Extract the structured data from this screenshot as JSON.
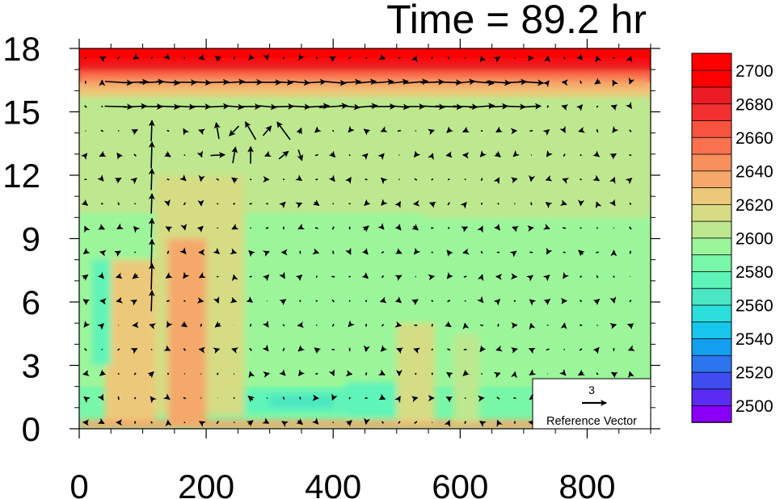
{
  "chart_data": {
    "type": "heatmap",
    "title": "Time = 89.2 hr",
    "xlabel": "",
    "ylabel": "",
    "xlim": [
      0,
      900
    ],
    "ylim": [
      0,
      18
    ],
    "xticks": [
      "0",
      "200",
      "400",
      "600",
      "800"
    ],
    "xtick_values": [
      0,
      200,
      400,
      600,
      800
    ],
    "yticks": [
      "0",
      "3",
      "6",
      "9",
      "12",
      "15",
      "18"
    ],
    "ytick_values": [
      0,
      3,
      6,
      9,
      12,
      15,
      18
    ],
    "colorbar": {
      "min": 2490,
      "max": 2710,
      "step": 10,
      "labels": [
        "2500",
        "2520",
        "2540",
        "2560",
        "2580",
        "2600",
        "2620",
        "2640",
        "2660",
        "2680",
        "2700"
      ],
      "label_values": [
        2500,
        2520,
        2540,
        2560,
        2580,
        2600,
        2620,
        2640,
        2660,
        2680,
        2700
      ],
      "colors": [
        "#8a00f7",
        "#5a2bf2",
        "#3e4cf0",
        "#2c75ee",
        "#129ff0",
        "#16c6ec",
        "#2bdedc",
        "#4be7c3",
        "#5ef4b8",
        "#78f7a8",
        "#9bf69a",
        "#bde88f",
        "#d6dc84",
        "#ecc97a",
        "#f4a96b",
        "#f8905d",
        "#f9724d",
        "#f7533e",
        "#f2302f",
        "#ec1c24",
        "#ff0000",
        "#ff0000"
      ]
    },
    "field_note_bands": [
      {
        "height_range": [
          17.0,
          18.0
        ],
        "value": 2700
      },
      {
        "height_range": [
          16.4,
          17.0
        ],
        "value": 2665
      },
      {
        "height_range": [
          15.6,
          16.4
        ],
        "value": 2625
      },
      {
        "height_range": [
          10.2,
          15.6
        ],
        "value": 2605
      },
      {
        "height_range": [
          2.0,
          10.2
        ],
        "value": 2590
      },
      {
        "height_range": [
          0.0,
          2.0
        ],
        "value": 2580
      }
    ],
    "reference_vector": {
      "magnitude": "3",
      "label": "Reference Vector"
    }
  }
}
